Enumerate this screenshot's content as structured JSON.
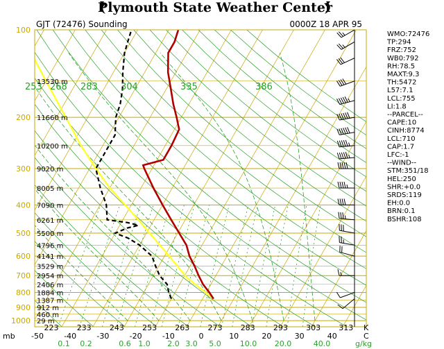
{
  "header": {
    "title": "Plymouth State Weather Center",
    "station": "GJT (72476) Sounding",
    "datetime": "0000Z 18 APR 95"
  },
  "colors": {
    "isobar": "#c8a800",
    "isotherm": "#c8a800",
    "dry_adiabat": "#2aa02a",
    "moist_adiabat": "#2aa02a",
    "mixing_ratio": "#2aa02a",
    "temperature": "#b00000",
    "dewpoint": "#000000",
    "parcel": "#ffff33",
    "wind": "#000000"
  },
  "chart_data": {
    "type": "line",
    "chart_kind": "skew-T log-P sounding",
    "pressure_ticks": [
      "100",
      "200",
      "300",
      "400",
      "500",
      "600",
      "700",
      "800",
      "900",
      "1000"
    ],
    "pressure_axis_label": "mb",
    "temperature_ticks": [
      "-50",
      "-40",
      "-30",
      "-20",
      "-10",
      "0",
      "10",
      "20",
      "30",
      "40"
    ],
    "temperature_axis_label": "C",
    "kelvin_ticks": [
      "223",
      "233",
      "243",
      "253",
      "263",
      "273",
      "283",
      "293",
      "303",
      "313"
    ],
    "kelvin_axis_label": "K",
    "mixing_ratio_ticks": [
      "0.1",
      "0.2",
      "0.6",
      "1.0",
      "2.0",
      "3.0",
      "5.0",
      "10.0",
      "20.0",
      "40.0"
    ],
    "mixing_ratio_axis_label": "g/kg",
    "theta_labels": [
      "253",
      "268",
      "283",
      "304",
      "335",
      "386"
    ],
    "height_labels": [
      {
        "p": 150,
        "label": "13530 m"
      },
      {
        "p": 200,
        "label": "11660 m"
      },
      {
        "p": 250,
        "label": "10200 m"
      },
      {
        "p": 300,
        "label": "9020 m"
      },
      {
        "p": 350,
        "label": "8005 m"
      },
      {
        "p": 400,
        "label": "7090 m"
      },
      {
        "p": 450,
        "label": "6261 m"
      },
      {
        "p": 500,
        "label": "5500 m"
      },
      {
        "p": 550,
        "label": "4796 m"
      },
      {
        "p": 600,
        "label": "4141 m"
      },
      {
        "p": 650,
        "label": "3529 m"
      },
      {
        "p": 700,
        "label": "2954 m"
      },
      {
        "p": 750,
        "label": "2406 m"
      },
      {
        "p": 800,
        "label": "1884 m"
      },
      {
        "p": 850,
        "label": "1387 m"
      },
      {
        "p": 900,
        "label": "912 m"
      },
      {
        "p": 950,
        "label": "460 m"
      },
      {
        "p": 1000,
        "label": "29 m"
      }
    ],
    "series": [
      {
        "key": "temperature",
        "points": [
          {
            "p": 841,
            "t": 3.5
          },
          {
            "p": 800,
            "t": 1.0
          },
          {
            "p": 750,
            "t": -2.5
          },
          {
            "p": 700,
            "t": -5.5
          },
          {
            "p": 650,
            "t": -8.5
          },
          {
            "p": 600,
            "t": -12.0
          },
          {
            "p": 550,
            "t": -15.0
          },
          {
            "p": 500,
            "t": -19.5
          },
          {
            "p": 450,
            "t": -24.5
          },
          {
            "p": 400,
            "t": -30.0
          },
          {
            "p": 350,
            "t": -36.0
          },
          {
            "p": 300,
            "t": -42.5
          },
          {
            "p": 292,
            "t": -43.5
          },
          {
            "p": 280,
            "t": -38.0
          },
          {
            "p": 250,
            "t": -38.0
          },
          {
            "p": 220,
            "t": -38.5
          },
          {
            "p": 200,
            "t": -41.5
          },
          {
            "p": 180,
            "t": -45.0
          },
          {
            "p": 160,
            "t": -48.5
          },
          {
            "p": 140,
            "t": -52.5
          },
          {
            "p": 120,
            "t": -56.0
          },
          {
            "p": 110,
            "t": -56.0
          },
          {
            "p": 100,
            "t": -57.0
          },
          {
            "p": 90,
            "t": -55.0
          }
        ]
      },
      {
        "key": "dewpoint",
        "points": [
          {
            "p": 841,
            "t": -10.0
          },
          {
            "p": 800,
            "t": -12.0
          },
          {
            "p": 750,
            "t": -14.0
          },
          {
            "p": 700,
            "t": -18.0
          },
          {
            "p": 650,
            "t": -21.0
          },
          {
            "p": 600,
            "t": -24.0
          },
          {
            "p": 550,
            "t": -30.0
          },
          {
            "p": 520,
            "t": -35.0
          },
          {
            "p": 500,
            "t": -40.0
          },
          {
            "p": 480,
            "t": -37.0
          },
          {
            "p": 470,
            "t": -34.0
          },
          {
            "p": 460,
            "t": -38.0
          },
          {
            "p": 450,
            "t": -45.0
          },
          {
            "p": 400,
            "t": -48.0
          },
          {
            "p": 350,
            "t": -53.0
          },
          {
            "p": 300,
            "t": -58.0
          },
          {
            "p": 260,
            "t": -58.0
          },
          {
            "p": 230,
            "t": -58.0
          },
          {
            "p": 200,
            "t": -61.0
          },
          {
            "p": 180,
            "t": -62.0
          },
          {
            "p": 160,
            "t": -64.0
          },
          {
            "p": 140,
            "t": -67.0
          },
          {
            "p": 120,
            "t": -70.0
          },
          {
            "p": 110,
            "t": -71.0
          },
          {
            "p": 100,
            "t": -72.0
          },
          {
            "p": 90,
            "t": -72.0
          }
        ]
      },
      {
        "key": "parcel",
        "points": [
          {
            "p": 841,
            "t": 3.5
          },
          {
            "p": 750,
            "t": -5.0
          },
          {
            "p": 710,
            "t": -9.0
          },
          {
            "p": 650,
            "t": -14.0
          },
          {
            "p": 600,
            "t": -18.5
          },
          {
            "p": 550,
            "t": -23.5
          },
          {
            "p": 500,
            "t": -29.0
          },
          {
            "p": 450,
            "t": -35.0
          },
          {
            "p": 400,
            "t": -42.0
          },
          {
            "p": 350,
            "t": -50.0
          },
          {
            "p": 300,
            "t": -58.0
          },
          {
            "p": 250,
            "t": -67.0
          },
          {
            "p": 200,
            "t": -77.0
          },
          {
            "p": 150,
            "t": -90.0
          },
          {
            "p": 100,
            "t": -108.0
          }
        ]
      }
    ],
    "winds": [
      {
        "p": 100,
        "dir": 240,
        "speed": 25
      },
      {
        "p": 110,
        "dir": 240,
        "speed": 25
      },
      {
        "p": 125,
        "dir": 245,
        "speed": 30
      },
      {
        "p": 150,
        "dir": 250,
        "speed": 40
      },
      {
        "p": 175,
        "dir": 255,
        "speed": 55
      },
      {
        "p": 200,
        "dir": 260,
        "speed": 60
      },
      {
        "p": 225,
        "dir": 260,
        "speed": 60
      },
      {
        "p": 250,
        "dir": 265,
        "speed": 55
      },
      {
        "p": 275,
        "dir": 265,
        "speed": 55
      },
      {
        "p": 300,
        "dir": 270,
        "speed": 50
      },
      {
        "p": 350,
        "dir": 270,
        "speed": 45
      },
      {
        "p": 400,
        "dir": 270,
        "speed": 40
      },
      {
        "p": 450,
        "dir": 275,
        "speed": 35
      },
      {
        "p": 500,
        "dir": 280,
        "speed": 30
      },
      {
        "p": 550,
        "dir": 280,
        "speed": 25
      },
      {
        "p": 600,
        "dir": 285,
        "speed": 20
      },
      {
        "p": 700,
        "dir": 270,
        "speed": 15
      },
      {
        "p": 800,
        "dir": 250,
        "speed": 10
      },
      {
        "p": 841,
        "dir": 230,
        "speed": 10
      }
    ],
    "indices": [
      "WMO:72476",
      "TP:294",
      "FRZ:752",
      "WB0:792",
      "RH:78.5",
      "MAXT:9.3",
      "TH:5472",
      "L57:7.1",
      "LCL:755",
      "LI:1.8",
      "--PARCEL--",
      "CAPE:10",
      "CINH:8774",
      "LCL:710",
      "CAP:1.7",
      "LFC:-1",
      "--WIND--",
      "STM:351/18",
      "HEL:250",
      "SHR:+0.0",
      "SRDS:119",
      "EH:0.0",
      "BRN:0.1",
      "BSHR:108"
    ]
  }
}
